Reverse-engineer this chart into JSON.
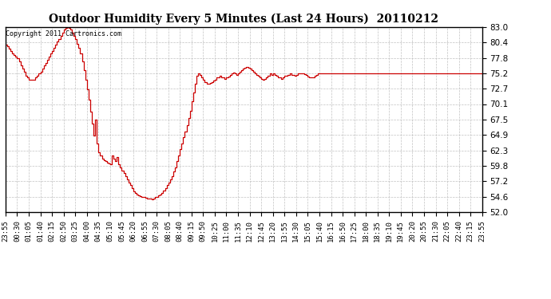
{
  "title": "Outdoor Humidity Every 5 Minutes (Last 24 Hours)  20110212",
  "copyright_text": "Copyright 2011 Cartronics.com",
  "line_color": "#cc0000",
  "background_color": "#ffffff",
  "plot_bg_color": "#ffffff",
  "grid_color": "#bbbbbb",
  "ylim": [
    52.0,
    83.0
  ],
  "yticks": [
    52.0,
    54.6,
    57.2,
    59.8,
    62.3,
    64.9,
    67.5,
    70.1,
    72.7,
    75.2,
    77.8,
    80.4,
    83.0
  ],
  "x_labels": [
    "23:55",
    "00:30",
    "01:05",
    "01:40",
    "02:15",
    "02:50",
    "03:25",
    "04:00",
    "04:35",
    "05:10",
    "05:45",
    "06:20",
    "06:55",
    "07:30",
    "08:05",
    "08:40",
    "09:15",
    "09:50",
    "10:25",
    "11:00",
    "11:35",
    "12:10",
    "12:45",
    "13:20",
    "13:55",
    "14:30",
    "15:05",
    "15:40",
    "16:15",
    "16:50",
    "17:25",
    "18:00",
    "18:35",
    "19:10",
    "19:45",
    "20:20",
    "20:55",
    "21:30",
    "22:05",
    "22:40",
    "23:15",
    "23:55"
  ],
  "humidity_values": [
    80.0,
    79.7,
    79.4,
    79.0,
    78.6,
    78.3,
    78.0,
    77.7,
    77.3,
    76.5,
    76.0,
    75.5,
    74.8,
    74.5,
    74.2,
    74.2,
    74.2,
    74.2,
    74.5,
    74.8,
    75.2,
    75.5,
    76.0,
    76.5,
    77.0,
    77.5,
    78.0,
    78.5,
    79.0,
    79.5,
    80.0,
    80.5,
    81.0,
    81.5,
    82.0,
    82.5,
    82.8,
    83.0,
    82.8,
    82.5,
    82.0,
    81.5,
    81.0,
    80.2,
    79.5,
    78.5,
    77.3,
    75.8,
    74.2,
    72.5,
    70.8,
    68.8,
    66.8,
    64.8,
    67.5,
    63.5,
    62.0,
    61.5,
    61.0,
    60.7,
    60.5,
    60.3,
    60.2,
    60.0,
    61.5,
    61.0,
    60.5,
    61.2,
    60.0,
    59.5,
    59.0,
    58.5,
    58.0,
    57.5,
    57.0,
    56.5,
    56.0,
    55.5,
    55.2,
    55.0,
    54.8,
    54.7,
    54.6,
    54.5,
    54.4,
    54.3,
    54.3,
    54.3,
    54.2,
    54.3,
    54.5,
    54.6,
    54.8,
    55.0,
    55.3,
    55.6,
    56.0,
    56.5,
    57.0,
    57.5,
    58.0,
    58.8,
    59.5,
    60.5,
    61.5,
    62.5,
    63.5,
    64.5,
    65.5,
    66.5,
    67.8,
    69.0,
    70.5,
    72.0,
    73.5,
    74.8,
    75.2,
    75.0,
    74.6,
    74.2,
    73.8,
    73.5,
    73.5,
    73.6,
    73.8,
    74.0,
    74.2,
    74.5,
    74.5,
    74.8,
    74.6,
    74.5,
    74.3,
    74.5,
    74.7,
    75.0,
    75.2,
    75.4,
    75.2,
    75.0,
    75.2,
    75.5,
    75.8,
    76.0,
    76.2,
    76.3,
    76.2,
    76.0,
    75.8,
    75.5,
    75.3,
    75.0,
    74.8,
    74.5,
    74.3,
    74.2,
    74.3,
    74.5,
    74.8,
    75.2,
    75.0,
    75.2,
    75.0,
    74.8,
    74.6,
    74.5,
    74.3,
    74.5,
    74.8,
    74.8,
    75.0,
    75.2,
    75.0,
    74.9,
    74.8,
    75.0,
    75.2,
    75.2,
    75.3,
    75.2,
    75.1,
    74.9,
    74.7,
    74.5,
    74.5,
    74.6,
    74.8,
    75.0,
    75.2,
    75.2,
    75.2,
    75.2,
    75.2,
    75.2,
    75.2,
    75.2,
    75.2,
    75.2,
    75.2,
    75.2,
    75.2,
    75.2,
    75.2,
    75.2,
    75.2,
    75.2,
    75.2,
    75.2,
    75.2,
    75.2,
    75.2,
    75.2,
    75.2,
    75.2,
    75.2,
    75.2,
    75.2,
    75.2,
    75.2,
    75.2,
    75.2,
    75.2,
    75.2,
    75.2,
    75.2,
    75.2,
    75.2,
    75.2,
    75.2,
    75.2,
    75.2,
    75.2,
    75.2,
    75.2,
    75.2,
    75.2,
    75.2,
    75.2,
    75.2,
    75.2,
    75.2,
    75.2,
    75.2,
    75.2,
    75.2,
    75.2,
    75.2,
    75.2,
    75.2,
    75.2,
    75.2,
    75.2,
    75.2,
    75.2,
    75.2,
    75.2,
    75.2,
    75.2,
    75.2,
    75.2,
    75.2,
    75.2,
    75.2,
    75.2,
    75.2,
    75.2,
    75.2,
    75.2,
    75.2,
    75.2,
    75.2,
    75.2,
    75.2,
    75.2,
    75.2,
    75.2,
    75.2,
    75.2,
    75.2,
    75.2,
    75.2,
    75.2,
    75.2,
    75.2,
    75.2,
    75.2,
    75.2,
    75.2,
    75.2
  ]
}
